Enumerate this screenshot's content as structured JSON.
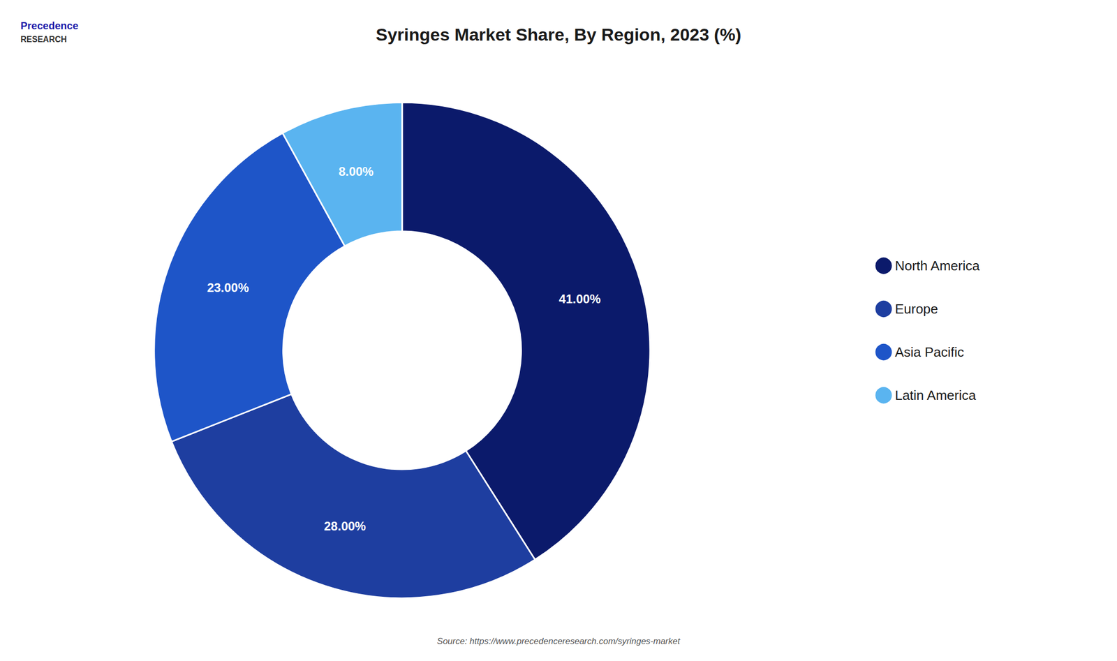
{
  "chart_data": {
    "type": "pie",
    "title": "Syringes Market Share, By Region, 2023 (%)",
    "categories": [
      "North America",
      "Europe",
      "Asia Pacific",
      "Latin America"
    ],
    "values": [
      41.0,
      28.0,
      23.0,
      8.0
    ],
    "value_labels": [
      "41.00%",
      "28.00%",
      "23.00%",
      "8.00%"
    ],
    "colors": [
      "#0b1a6b",
      "#1e3ea0",
      "#1e55c8",
      "#5ab4f0"
    ],
    "data_labels": true,
    "legend": "right",
    "annotations": [
      "Precedence",
      "RESEARCH",
      "Source: https://www.precedenceresearch.com/syringes-market"
    ]
  }
}
